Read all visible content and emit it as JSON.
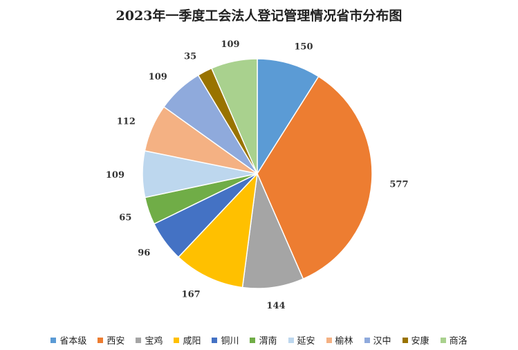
{
  "chart_data": {
    "type": "pie",
    "title": "2023年一季度工会法人登记管理情况省市分布图",
    "categories": [
      "省本级",
      "西安",
      "宝鸡",
      "咸阳",
      "铜川",
      "渭南",
      "延安",
      "榆林",
      "汉中",
      "安康",
      "商洛"
    ],
    "values": [
      150,
      577,
      144,
      167,
      96,
      65,
      109,
      112,
      109,
      35,
      109
    ],
    "colors": [
      "#5B9BD5",
      "#ED7D31",
      "#A5A5A5",
      "#FFC000",
      "#4472C4",
      "#70AD47",
      "#BDD7EE",
      "#F4B183",
      "#8FAADC",
      "#997300",
      "#A9D18E"
    ],
    "legend_position": "bottom"
  }
}
